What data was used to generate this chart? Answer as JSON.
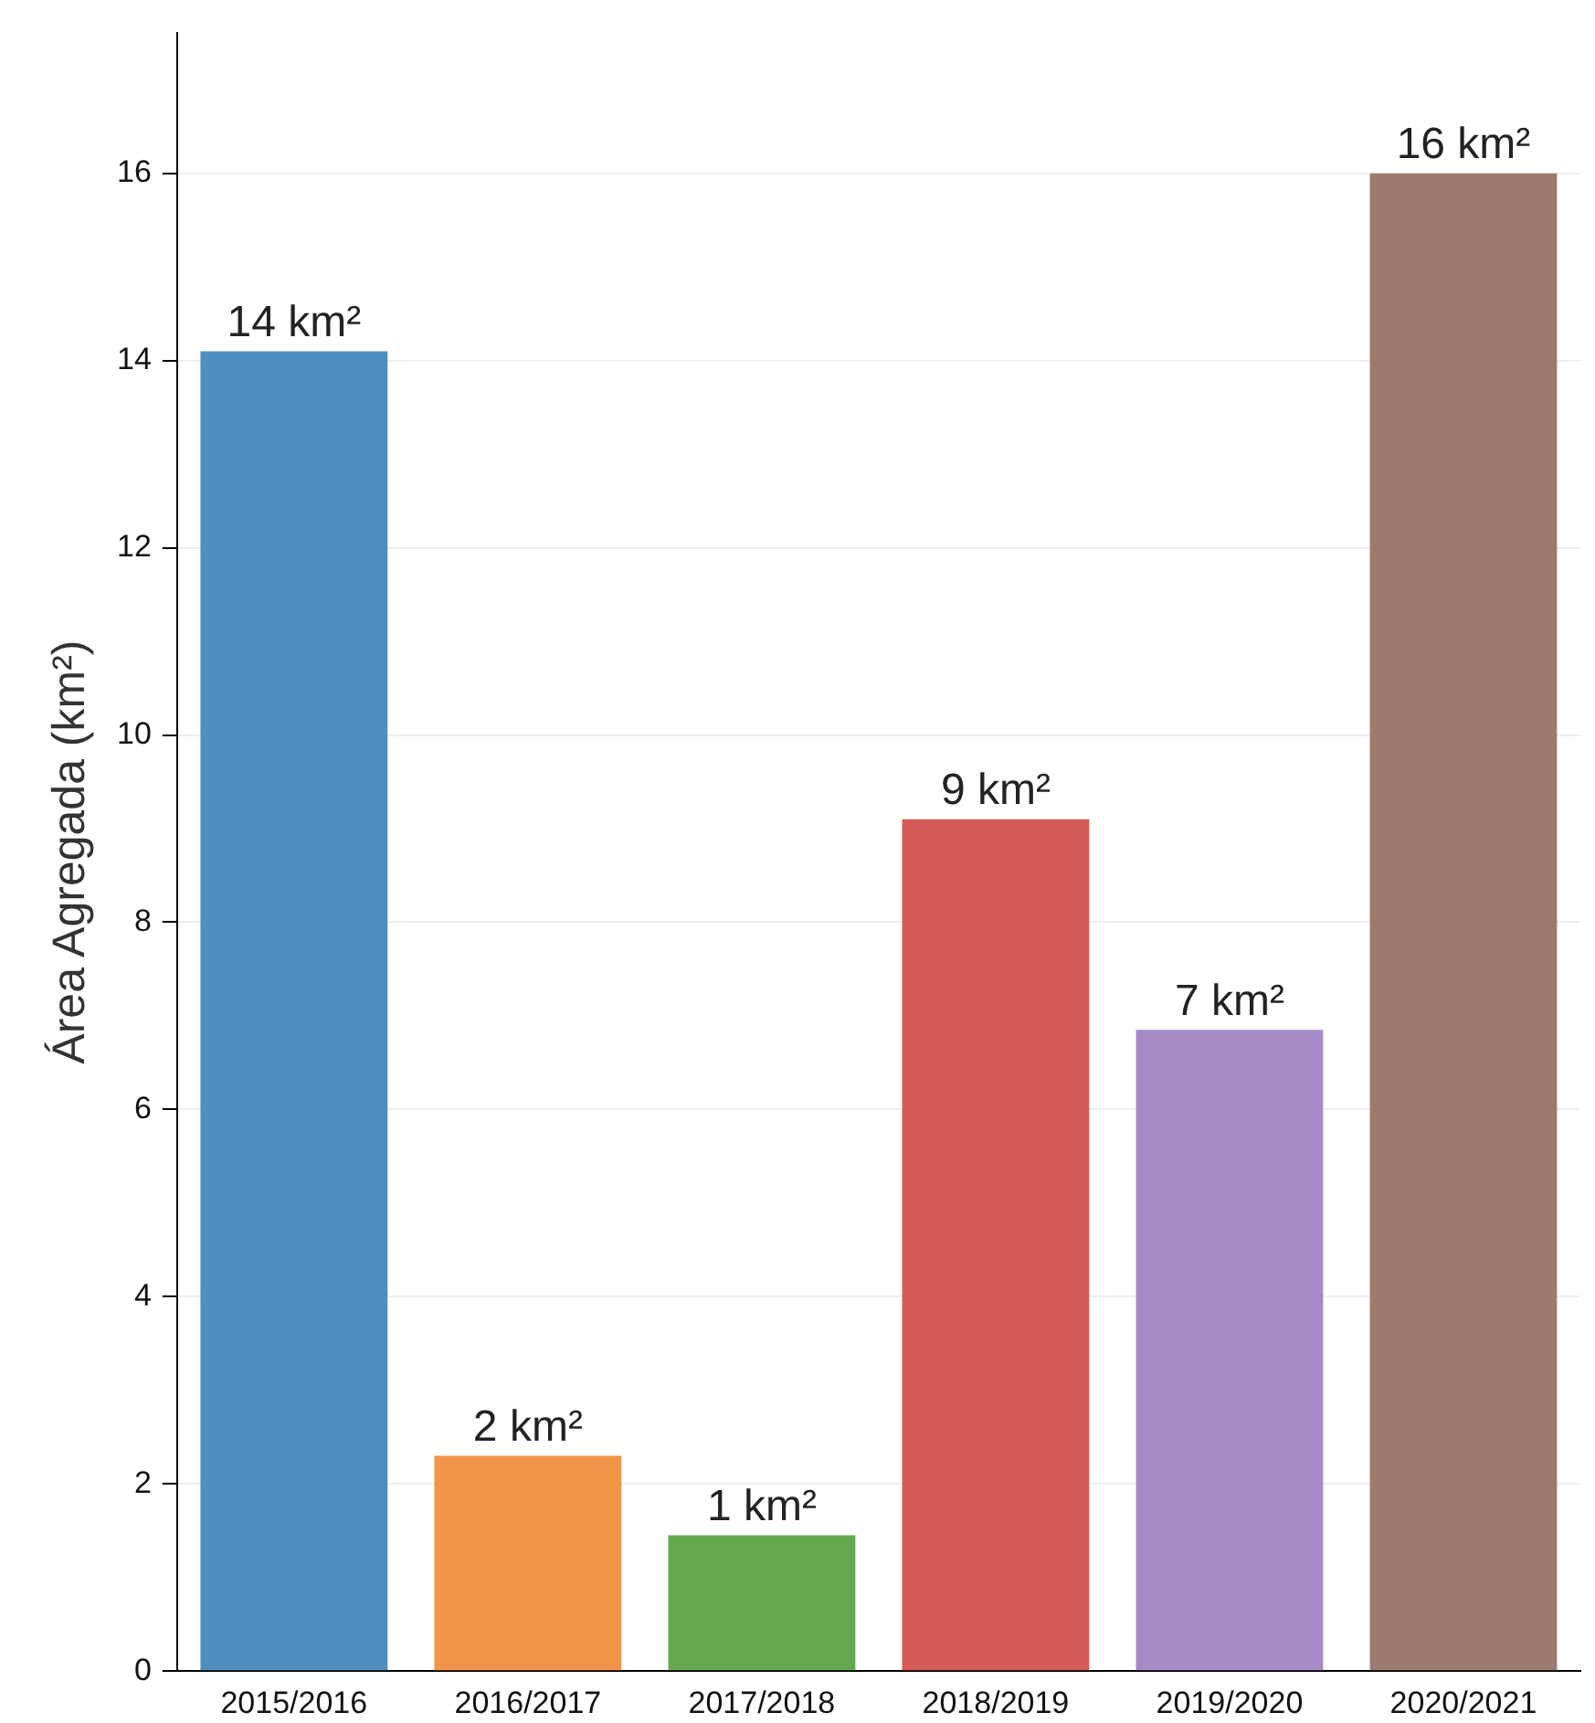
{
  "chart_data": {
    "type": "bar",
    "ylabel": "Área Agregada (km²)",
    "categories": [
      "2015/2016",
      "2016/2017",
      "2017/2018",
      "2018/2019",
      "2019/2020",
      "2020/2021"
    ],
    "values": [
      14.1,
      2.3,
      1.45,
      9.1,
      6.85,
      16
    ],
    "colors": [
      "#4f8fc0",
      "#f0954a",
      "#65a84f",
      "#d45b55",
      "#a68ac6",
      "#9c7a6f"
    ],
    "value_labels": [
      "14 km²",
      "2 km²",
      "1 km²",
      "9 km²",
      "7 km²",
      "16 km²"
    ],
    "ylim": [
      0,
      17.5
    ],
    "yticks": [
      0,
      2,
      4,
      6,
      8,
      10,
      12,
      14,
      16
    ],
    "grid": "y",
    "legend": false
  }
}
